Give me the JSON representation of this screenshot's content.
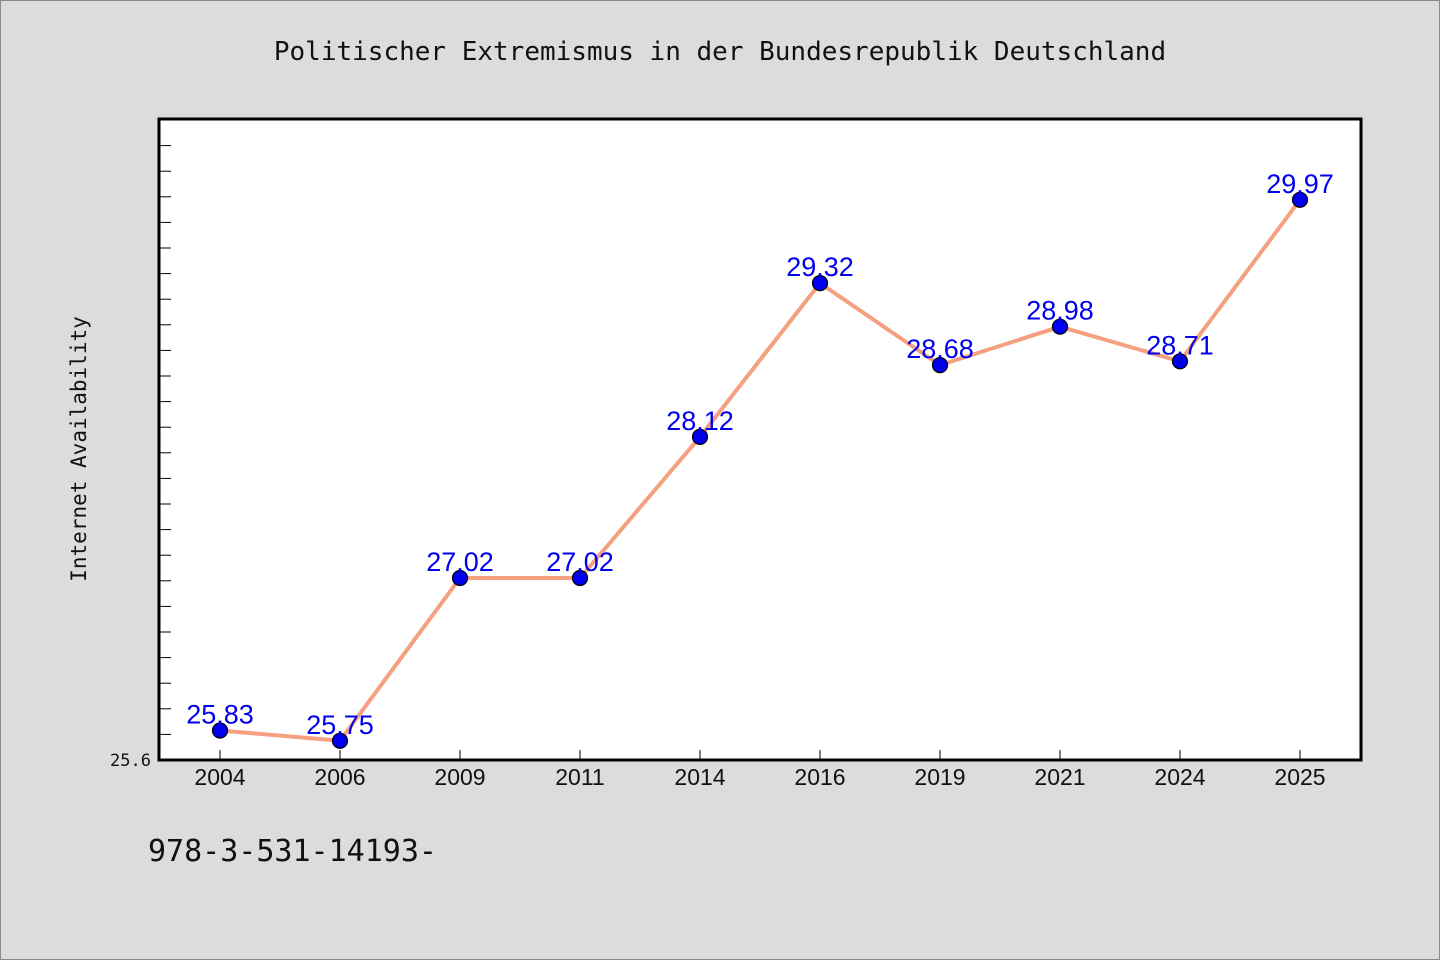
{
  "chart_data": {
    "type": "line",
    "title": "Politischer Extremismus in der Bundesrepublik Deutschland",
    "xlabel": "",
    "ylabel": "Internet Availability",
    "categories": [
      "2004",
      "2006",
      "2009",
      "2011",
      "2014",
      "2016",
      "2019",
      "2021",
      "2024",
      "2025"
    ],
    "series": [
      {
        "values": [
          25.83,
          25.75,
          27.02,
          27.02,
          28.12,
          29.32,
          28.68,
          28.98,
          28.71,
          29.97
        ],
        "labels": [
          "25.83",
          "25.75",
          "27.02",
          "27.02",
          "28.12",
          "29.32",
          "28.68",
          "28.98",
          "28.71",
          "29.97"
        ]
      }
    ],
    "ylim": [
      25.6,
      30.6
    ],
    "y_tick_labels": [
      "25.6"
    ],
    "grid": false,
    "colors": {
      "line": "#f5a080",
      "marker": "#0000ee",
      "data_label": "#0000ee",
      "plot_background": "#ffffff",
      "page_background": "#dcdcdc"
    }
  },
  "footer_text": "978-3-531-14193-"
}
